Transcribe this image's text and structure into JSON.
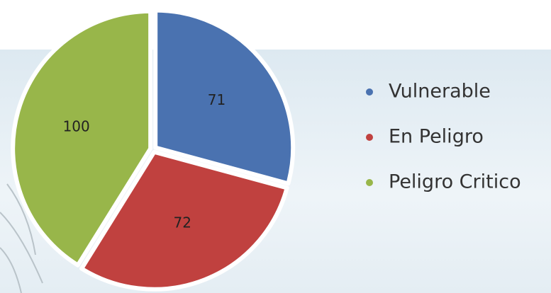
{
  "chart_data": {
    "type": "pie",
    "categories": [
      "Vulnerable",
      "En Peligro",
      "Peligro Critico"
    ],
    "values": [
      71,
      72,
      100
    ],
    "colors": [
      "#4a72b0",
      "#c0413f",
      "#98b64a"
    ],
    "legend": "right"
  }
}
